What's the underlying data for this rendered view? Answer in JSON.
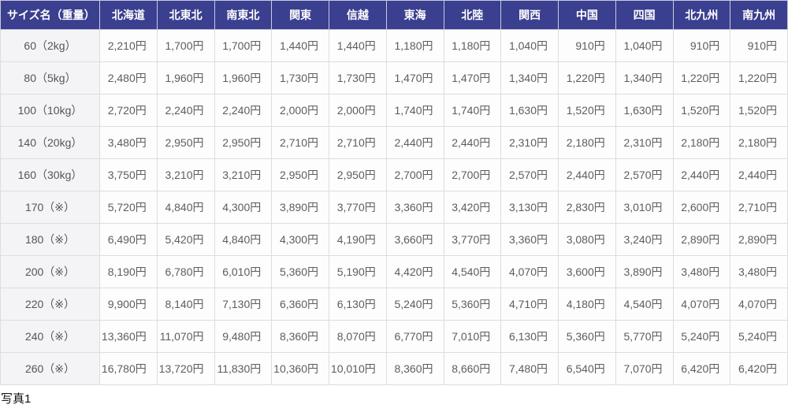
{
  "page": {
    "caption": "写真1"
  },
  "colors": {
    "header_bg": "#3a3f8f",
    "header_text": "#ffffff",
    "size_cell_bg": "#f4f4f6",
    "price_cell_bg": "#fdfdfd",
    "border": "#dcdce2",
    "price_text": "#5d5d5d"
  },
  "table": {
    "size_column_header": "サイズ名（重量）",
    "region_headers": [
      "北海道",
      "北東北",
      "南東北",
      "関東",
      "信越",
      "東海",
      "北陸",
      "関西",
      "中国",
      "四国",
      "北九州",
      "南九州"
    ],
    "rows": [
      {
        "size": "60（2kg）",
        "prices": [
          "2,210円",
          "1,700円",
          "1,700円",
          "1,440円",
          "1,440円",
          "1,180円",
          "1,180円",
          "1,040円",
          "910円",
          "1,040円",
          "910円",
          "910円"
        ]
      },
      {
        "size": "80（5kg）",
        "prices": [
          "2,480円",
          "1,960円",
          "1,960円",
          "1,730円",
          "1,730円",
          "1,470円",
          "1,470円",
          "1,340円",
          "1,220円",
          "1,340円",
          "1,220円",
          "1,220円"
        ]
      },
      {
        "size": "100（10kg）",
        "prices": [
          "2,720円",
          "2,240円",
          "2,240円",
          "2,000円",
          "2,000円",
          "1,740円",
          "1,740円",
          "1,630円",
          "1,520円",
          "1,630円",
          "1,520円",
          "1,520円"
        ]
      },
      {
        "size": "140（20kg）",
        "prices": [
          "3,480円",
          "2,950円",
          "2,950円",
          "2,710円",
          "2,710円",
          "2,440円",
          "2,440円",
          "2,310円",
          "2,180円",
          "2,310円",
          "2,180円",
          "2,180円"
        ]
      },
      {
        "size": "160（30kg）",
        "prices": [
          "3,750円",
          "3,210円",
          "3,210円",
          "2,950円",
          "2,950円",
          "2,700円",
          "2,700円",
          "2,570円",
          "2,440円",
          "2,570円",
          "2,440円",
          "2,440円"
        ]
      },
      {
        "size": "170（※）",
        "prices": [
          "5,720円",
          "4,840円",
          "4,300円",
          "3,890円",
          "3,770円",
          "3,360円",
          "3,420円",
          "3,130円",
          "2,830円",
          "3,010円",
          "2,600円",
          "2,710円"
        ]
      },
      {
        "size": "180（※）",
        "prices": [
          "6,490円",
          "5,420円",
          "4,840円",
          "4,300円",
          "4,190円",
          "3,660円",
          "3,770円",
          "3,360円",
          "3,080円",
          "3,240円",
          "2,890円",
          "2,890円"
        ]
      },
      {
        "size": "200（※）",
        "prices": [
          "8,190円",
          "6,780円",
          "6,010円",
          "5,360円",
          "5,190円",
          "4,420円",
          "4,540円",
          "4,070円",
          "3,600円",
          "3,890円",
          "3,480円",
          "3,480円"
        ]
      },
      {
        "size": "220（※）",
        "prices": [
          "9,900円",
          "8,140円",
          "7,130円",
          "6,360円",
          "6,130円",
          "5,240円",
          "5,360円",
          "4,710円",
          "4,180円",
          "4,540円",
          "4,070円",
          "4,070円"
        ]
      },
      {
        "size": "240（※）",
        "prices": [
          "13,360円",
          "11,070円",
          "9,480円",
          "8,360円",
          "8,070円",
          "6,770円",
          "7,010円",
          "6,130円",
          "5,360円",
          "5,770円",
          "5,240円",
          "5,240円"
        ]
      },
      {
        "size": "260（※）",
        "prices": [
          "16,780円",
          "13,720円",
          "11,830円",
          "10,360円",
          "10,010円",
          "8,360円",
          "8,660円",
          "7,480円",
          "6,540円",
          "7,070円",
          "6,420円",
          "6,420円"
        ]
      }
    ]
  }
}
